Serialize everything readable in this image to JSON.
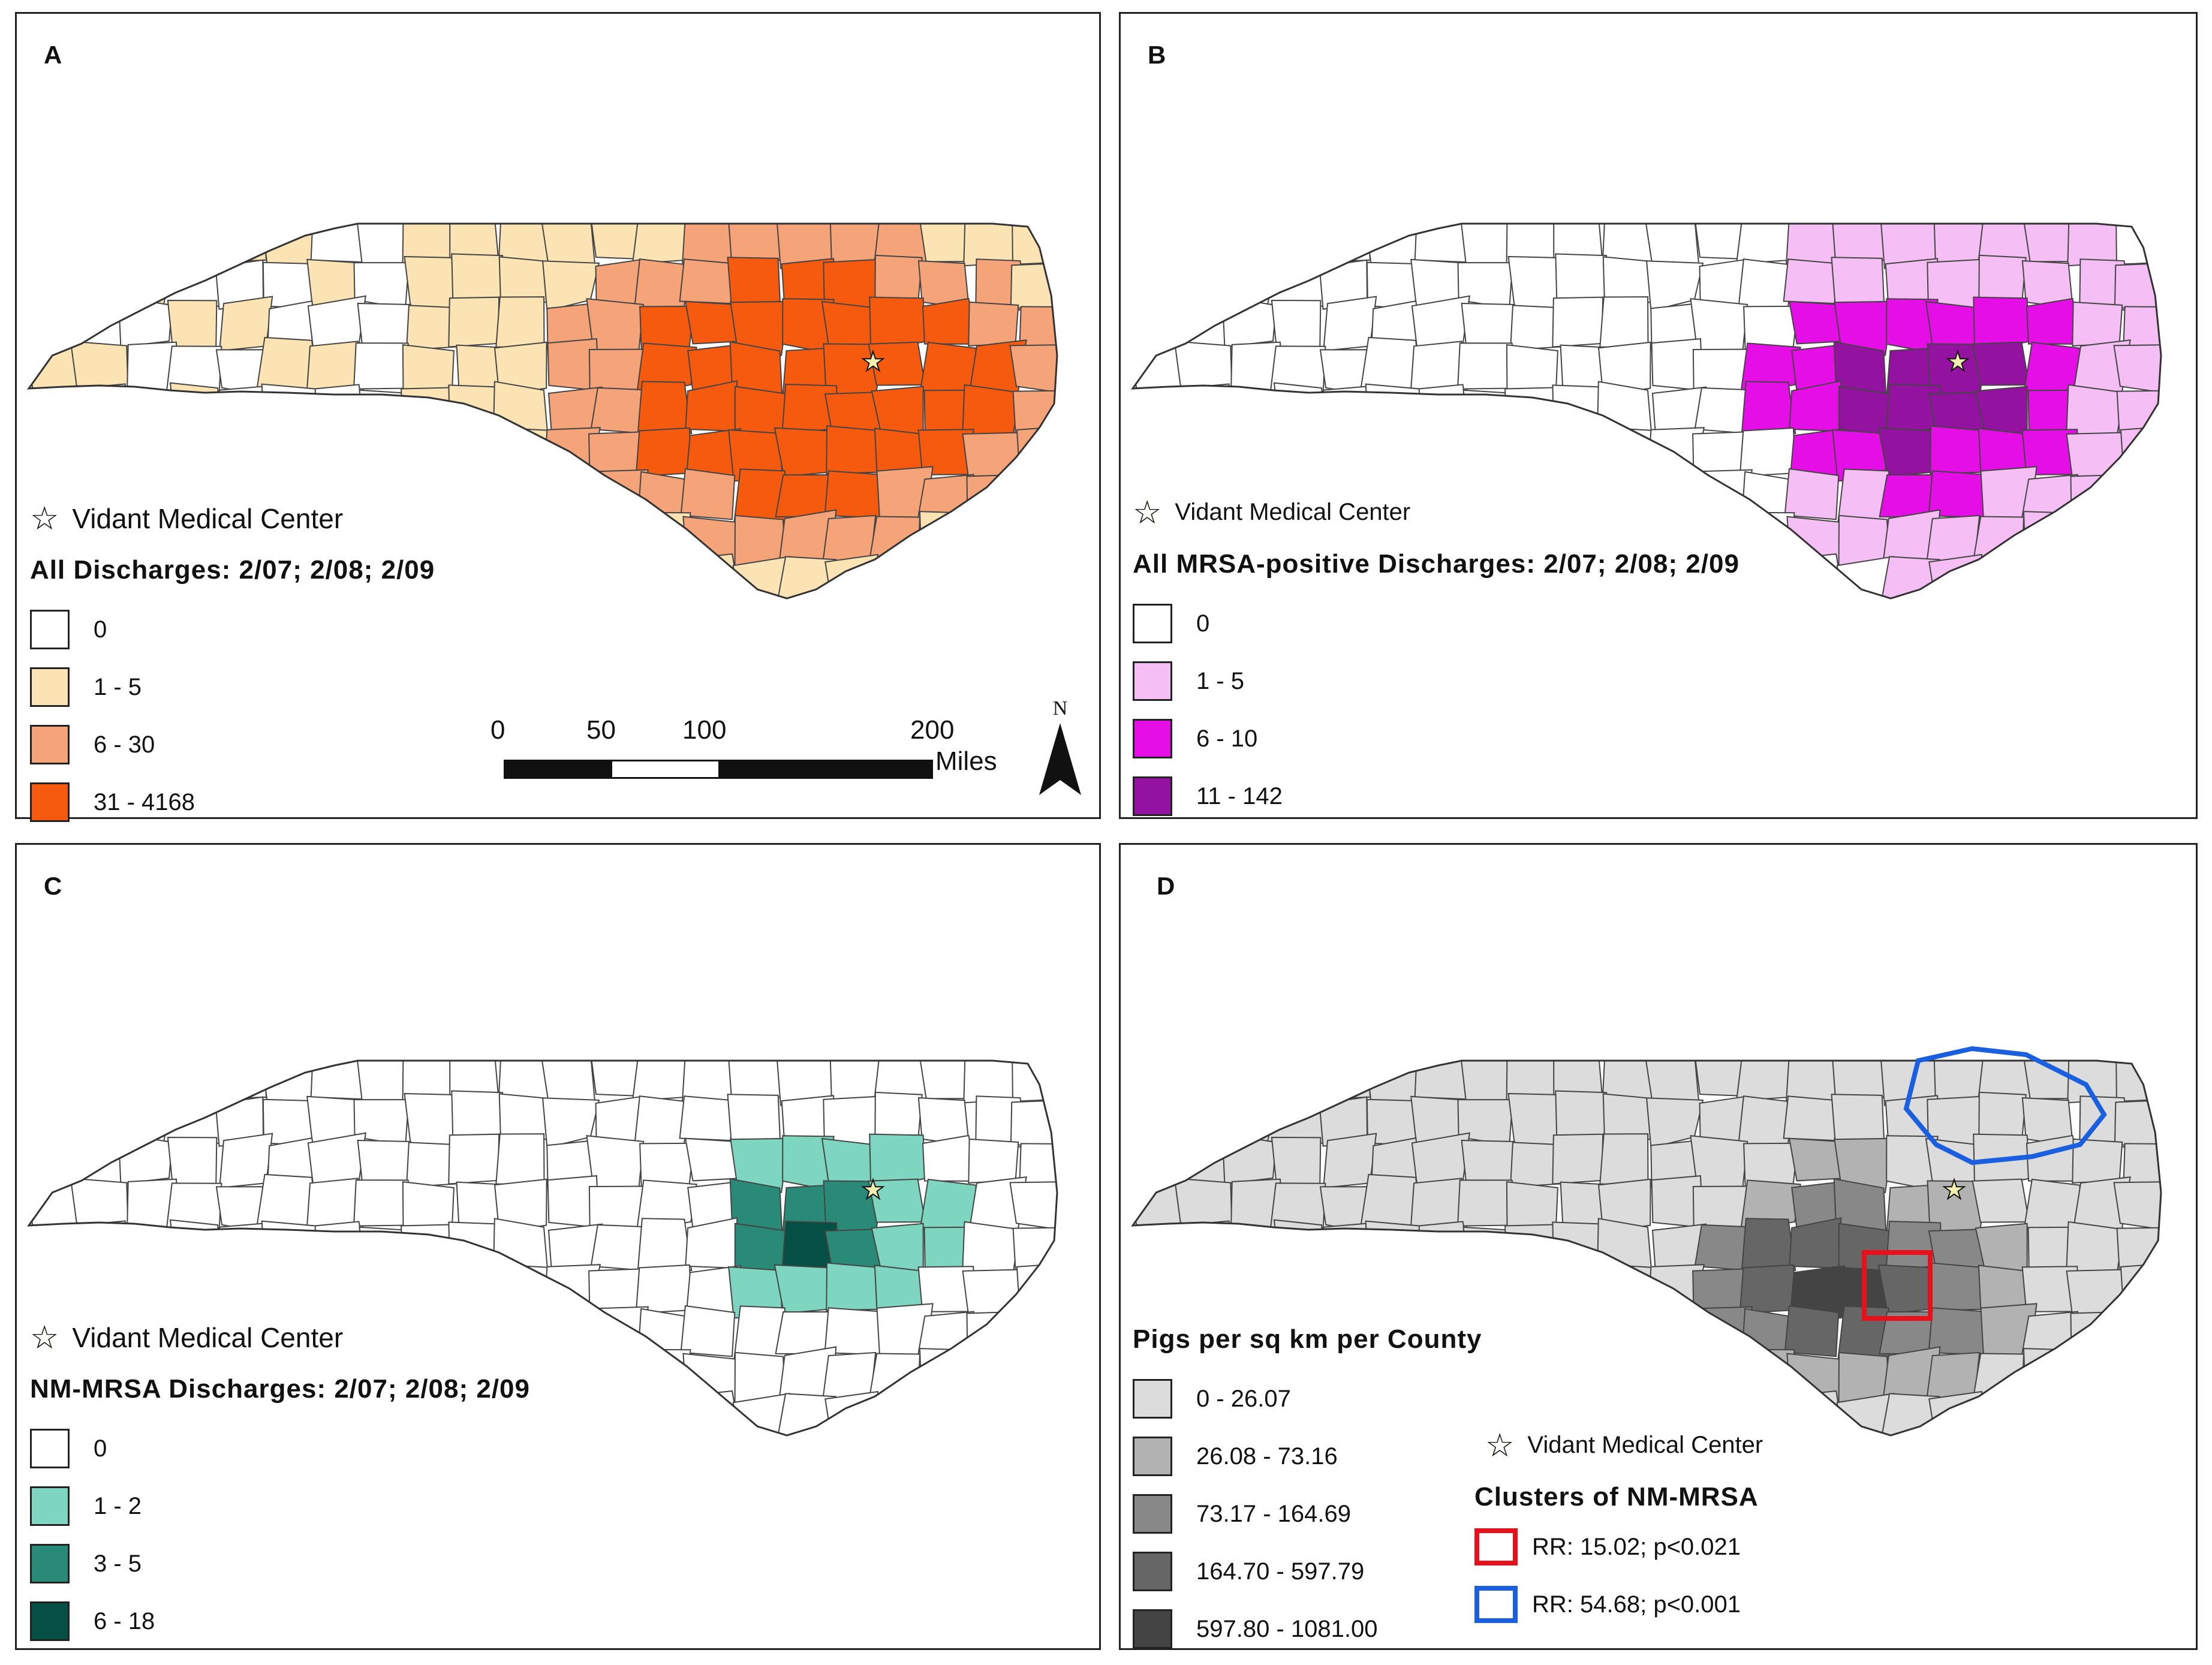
{
  "hospital_label": "Vidant Medical Center",
  "colors": {
    "border": "#222222",
    "county_line": "#444444"
  },
  "panels": [
    {
      "id": "A",
      "label": "A",
      "legend_title": "All Discharges: 2/07; 2/08; 2/09",
      "classes": [
        {
          "label": "0",
          "color": "#ffffff"
        },
        {
          "label": "1 - 5",
          "color": "#fbe3b4"
        },
        {
          "label": "6 - 30",
          "color": "#f5a47a"
        },
        {
          "label": "31 - 4168",
          "color": "#f55a0f"
        }
      ]
    },
    {
      "id": "B",
      "label": "B",
      "legend_title": "All MRSA-positive Discharges: 2/07; 2/08; 2/09",
      "classes": [
        {
          "label": "0",
          "color": "#ffffff"
        },
        {
          "label": "1 - 5",
          "color": "#f5bff5"
        },
        {
          "label": "6 - 10",
          "color": "#e60ee6"
        },
        {
          "label": "11 - 142",
          "color": "#9412a0"
        }
      ]
    },
    {
      "id": "C",
      "label": "C",
      "legend_title": "NM-MRSA Discharges: 2/07; 2/08; 2/09",
      "classes": [
        {
          "label": "0",
          "color": "#ffffff"
        },
        {
          "label": "1 - 2",
          "color": "#7fd6c0"
        },
        {
          "label": "3 - 5",
          "color": "#2a8a78"
        },
        {
          "label": "6 - 18",
          "color": "#064f44"
        }
      ]
    },
    {
      "id": "D",
      "label": "D",
      "legend_title": "Pigs per sq km per County",
      "classes": [
        {
          "label": "0 - 26.07",
          "color": "#dcdcdc"
        },
        {
          "label": "26.08 - 73.16",
          "color": "#b2b2b2"
        },
        {
          "label": "73.17 - 164.69",
          "color": "#888888"
        },
        {
          "label": "164.70 - 597.79",
          "color": "#666666"
        },
        {
          "label": "597.80 - 1081.00",
          "color": "#444444"
        }
      ],
      "cluster_title": "Clusters of NM-MRSA",
      "clusters": [
        {
          "label": "RR: 15.02; p<0.021",
          "color": "#e8101a"
        },
        {
          "label": "RR: 54.68; p<0.001",
          "color": "#1a5fe0"
        }
      ]
    }
  ],
  "scale_bar": {
    "ticks": [
      "0",
      "50",
      "100",
      "200"
    ],
    "unit": "Miles",
    "north_label": "N"
  }
}
